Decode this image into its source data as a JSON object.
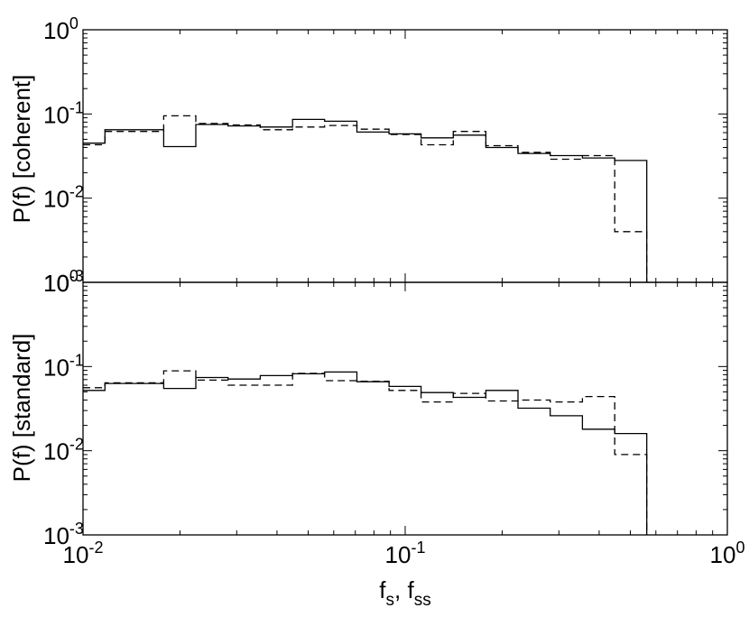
{
  "figure": {
    "xlabel": "f",
    "xlabel_sub1": "s",
    "xlabel_sep": ", f",
    "xlabel_sub2": "ss"
  },
  "axes": {
    "x_ticks": [
      {
        "value": 0.01,
        "base": "10",
        "exp": "-2"
      },
      {
        "value": 0.1,
        "base": "10",
        "exp": "-1"
      },
      {
        "value": 1,
        "base": "10",
        "exp": "0"
      }
    ],
    "y_ticks": [
      {
        "value": 0.001,
        "base": "10",
        "exp": "-3"
      },
      {
        "value": 0.01,
        "base": "10",
        "exp": "-2"
      },
      {
        "value": 0.1,
        "base": "10",
        "exp": "-1"
      },
      {
        "value": 1,
        "base": "10",
        "exp": "0"
      }
    ]
  },
  "chart_data": [
    {
      "type": "line",
      "style": "step histogram",
      "panel": "top",
      "ylabel": "P(f)  [coherent]",
      "x_scale": "log",
      "y_scale": "log",
      "xlim": [
        0.01,
        1
      ],
      "ylim": [
        0.001,
        1
      ],
      "bin_edges": [
        0.01,
        0.0117,
        0.0178,
        0.0224,
        0.0282,
        0.0355,
        0.0447,
        0.0562,
        0.0708,
        0.0891,
        0.112,
        0.141,
        0.178,
        0.224,
        0.282,
        0.355,
        0.447,
        0.562
      ],
      "series": [
        {
          "style": "solid",
          "values": [
            0.045,
            0.065,
            0.041,
            0.075,
            0.072,
            0.07,
            0.086,
            0.082,
            0.061,
            0.058,
            0.052,
            0.056,
            0.04,
            0.034,
            0.032,
            0.03,
            0.028
          ]
        },
        {
          "style": "dashed",
          "values": [
            0.043,
            0.062,
            0.095,
            0.077,
            0.074,
            0.065,
            0.07,
            0.073,
            0.066,
            0.057,
            0.043,
            0.062,
            0.042,
            0.035,
            0.029,
            0.032,
            0.004
          ]
        }
      ]
    },
    {
      "type": "line",
      "style": "step histogram",
      "panel": "bottom",
      "ylabel": "P(f)  [standard]",
      "x_scale": "log",
      "y_scale": "log",
      "xlim": [
        0.01,
        1
      ],
      "ylim": [
        0.001,
        1
      ],
      "bin_edges": [
        0.01,
        0.0117,
        0.0178,
        0.0224,
        0.0282,
        0.0355,
        0.0447,
        0.0562,
        0.0708,
        0.0891,
        0.112,
        0.141,
        0.178,
        0.224,
        0.282,
        0.355,
        0.447,
        0.562
      ],
      "series": [
        {
          "style": "solid",
          "values": [
            0.052,
            0.063,
            0.055,
            0.074,
            0.071,
            0.078,
            0.082,
            0.086,
            0.066,
            0.058,
            0.049,
            0.043,
            0.052,
            0.032,
            0.026,
            0.018,
            0.016
          ]
        },
        {
          "style": "dashed",
          "values": [
            0.056,
            0.064,
            0.089,
            0.069,
            0.06,
            0.06,
            0.083,
            0.068,
            0.067,
            0.052,
            0.038,
            0.048,
            0.039,
            0.04,
            0.038,
            0.044,
            0.009
          ]
        }
      ]
    }
  ]
}
